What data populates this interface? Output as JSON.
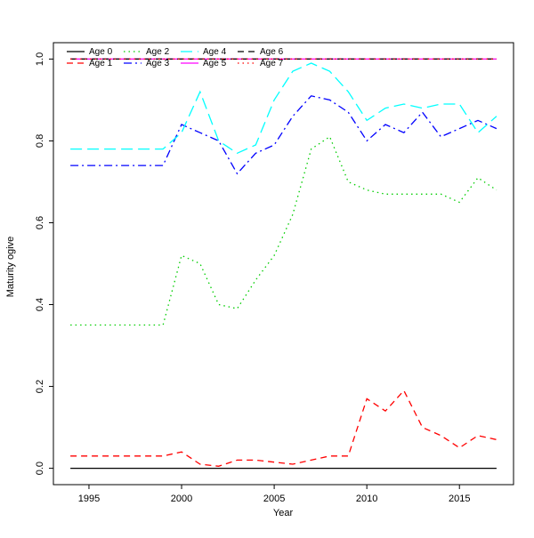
{
  "figure": {
    "background": "#ffffff"
  },
  "chart_data": {
    "type": "line",
    "title": "",
    "xlabel": "Year",
    "ylabel": "Maturity ogive",
    "xlim": [
      1994,
      2017
    ],
    "ylim": [
      0.0,
      1.0
    ],
    "grid": false,
    "legend_position": "top-left-two-rows",
    "legend_ncol": 4,
    "xticks": [
      1995,
      2000,
      2005,
      2010,
      2015
    ],
    "xtick_labels": [
      "1995",
      "2000",
      "2005",
      "2010",
      "2015"
    ],
    "yticks": [
      0.0,
      0.2,
      0.4,
      0.6,
      0.8,
      1.0
    ],
    "ytick_labels": [
      "0.0",
      "0.2",
      "0.4",
      "0.6",
      "0.8",
      "1.0"
    ],
    "x": [
      1994,
      1995,
      1996,
      1997,
      1998,
      1999,
      2000,
      2001,
      2002,
      2003,
      2004,
      2005,
      2006,
      2007,
      2008,
      2009,
      2010,
      2011,
      2012,
      2013,
      2014,
      2015,
      2016,
      2017
    ],
    "series": [
      {
        "name": "Age 0",
        "color": "#000000",
        "linestyle": "solid",
        "values": [
          0,
          0,
          0,
          0,
          0,
          0,
          0,
          0,
          0,
          0,
          0,
          0,
          0,
          0,
          0,
          0,
          0,
          0,
          0,
          0,
          0,
          0,
          0,
          0
        ]
      },
      {
        "name": "Age 1",
        "color": "#ff0000",
        "linestyle": "dashed",
        "values": [
          0.03,
          0.03,
          0.03,
          0.03,
          0.03,
          0.03,
          0.04,
          0.01,
          0.005,
          0.02,
          0.02,
          0.015,
          0.01,
          0.02,
          0.03,
          0.03,
          0.17,
          0.14,
          0.19,
          0.1,
          0.08,
          0.05,
          0.08,
          0.07
        ]
      },
      {
        "name": "Age 2",
        "color": "#00cd00",
        "linestyle": "dotted",
        "values": [
          0.35,
          0.35,
          0.35,
          0.35,
          0.35,
          0.35,
          0.52,
          0.5,
          0.4,
          0.39,
          0.46,
          0.52,
          0.62,
          0.78,
          0.81,
          0.7,
          0.68,
          0.67,
          0.67,
          0.67,
          0.67,
          0.65,
          0.71,
          0.68
        ]
      },
      {
        "name": "Age 3",
        "color": "#0000ff",
        "linestyle": "dashdot",
        "values": [
          0.74,
          0.74,
          0.74,
          0.74,
          0.74,
          0.74,
          0.84,
          0.82,
          0.8,
          0.72,
          0.77,
          0.79,
          0.86,
          0.91,
          0.9,
          0.87,
          0.8,
          0.84,
          0.82,
          0.87,
          0.81,
          0.83,
          0.85,
          0.83
        ]
      },
      {
        "name": "Age 4",
        "color": "#00ffff",
        "linestyle": "longdash",
        "values": [
          0.78,
          0.78,
          0.78,
          0.78,
          0.78,
          0.78,
          0.82,
          0.92,
          0.8,
          0.77,
          0.79,
          0.9,
          0.97,
          0.99,
          0.97,
          0.92,
          0.85,
          0.88,
          0.89,
          0.88,
          0.89,
          0.89,
          0.82,
          0.86
        ]
      },
      {
        "name": "Age 5",
        "color": "#ff00ff",
        "linestyle": "solid",
        "values": [
          1,
          1,
          1,
          1,
          1,
          1,
          1,
          1,
          1,
          1,
          1,
          1,
          1,
          1,
          1,
          1,
          1,
          1,
          1,
          1,
          1,
          1,
          1,
          1
        ]
      },
      {
        "name": "Age 6",
        "color": "#000000",
        "linestyle": "dashed",
        "values": [
          1,
          1,
          1,
          1,
          1,
          1,
          1,
          1,
          1,
          1,
          1,
          1,
          1,
          1,
          1,
          1,
          1,
          1,
          1,
          1,
          1,
          1,
          1,
          1
        ]
      },
      {
        "name": "Age 7",
        "color": "#ff0000",
        "linestyle": "dotted",
        "values": [
          1,
          1,
          1,
          1,
          1,
          1,
          1,
          1,
          1,
          1,
          1,
          1,
          1,
          1,
          1,
          1,
          1,
          1,
          1,
          1,
          1,
          1,
          1,
          1
        ]
      }
    ]
  }
}
